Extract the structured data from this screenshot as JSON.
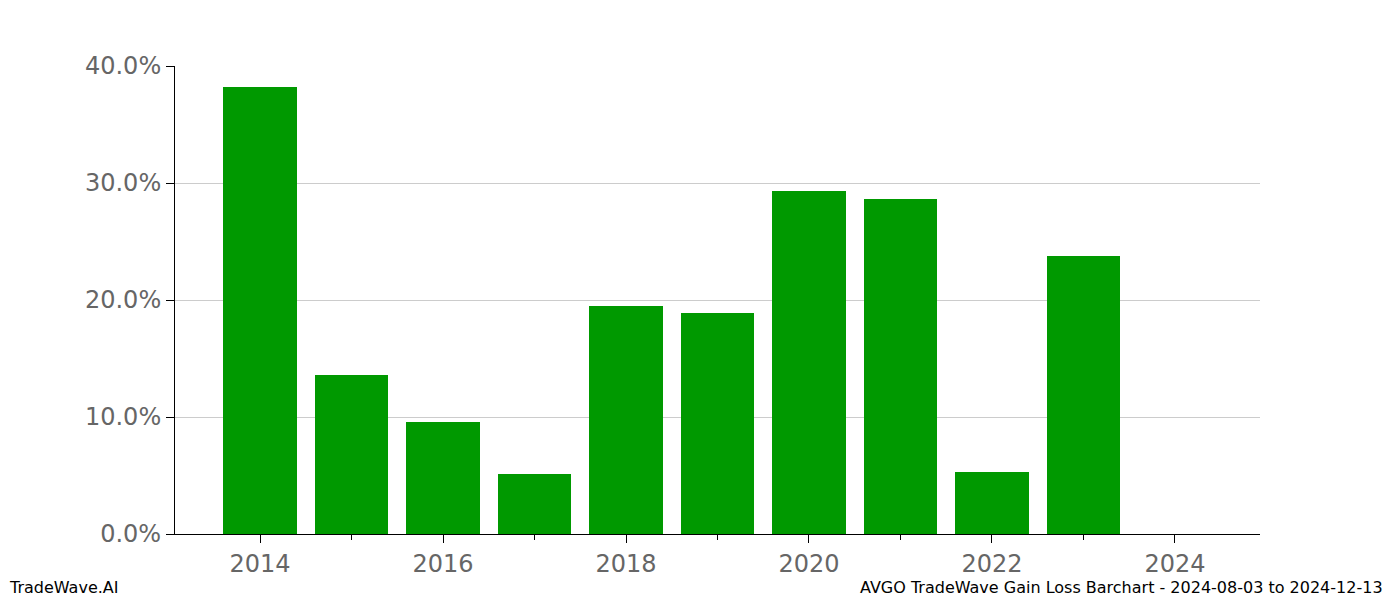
{
  "chart_data": {
    "type": "bar",
    "title": "AVGO TradeWave Gain Loss Barchart - 2024-08-03 to 2024-12-13",
    "annotations": [
      "TradeWave.AI"
    ],
    "x": [
      2014,
      2015,
      2016,
      2017,
      2018,
      2019,
      2020,
      2021,
      2022,
      2023,
      2024
    ],
    "values": [
      38.2,
      13.6,
      9.6,
      5.1,
      19.5,
      18.9,
      29.3,
      28.6,
      5.3,
      23.8,
      0
    ],
    "color": "#009900",
    "xlim": [
      2013.07,
      2024.93
    ],
    "xticks": [
      2014,
      2016,
      2018,
      2020,
      2022,
      2024
    ],
    "ylim": [
      0,
      40
    ],
    "yticks": [
      {
        "value": 0,
        "label": "0.0%"
      },
      {
        "value": 10,
        "label": "10.0%"
      },
      {
        "value": 20,
        "label": "20.0%"
      },
      {
        "value": 30,
        "label": "30.0%"
      },
      {
        "value": 40,
        "label": "40.0%"
      }
    ],
    "grid": true
  }
}
